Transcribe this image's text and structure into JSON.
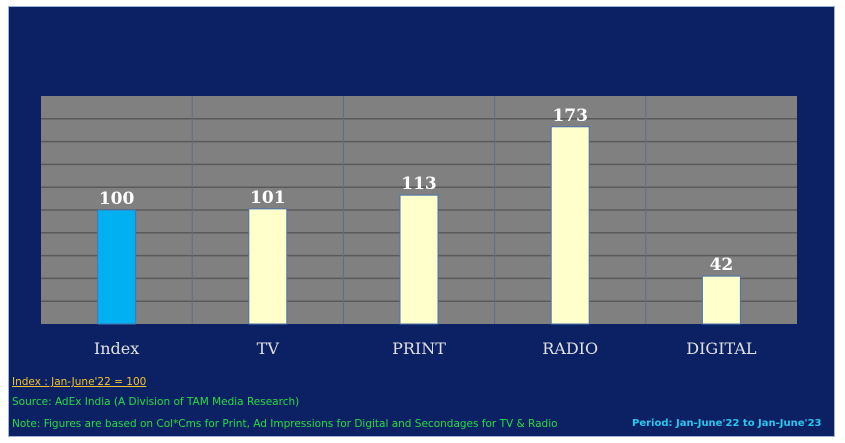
{
  "chart_data": {
    "type": "bar",
    "categories": [
      "Index",
      "TV",
      "PRINT",
      "RADIO",
      "DIGITAL"
    ],
    "values": [
      100,
      101,
      113,
      173,
      42
    ],
    "ylim": [
      0,
      200
    ],
    "grid": true,
    "bar_colors": [
      "#00b0f0",
      "#ffffcc",
      "#ffffcc",
      "#ffffcc",
      "#ffffcc"
    ],
    "plot_background": "#808080",
    "background": "#0b2163"
  },
  "notes": {
    "index": "Index : Jan-June'22 = 100",
    "source": "Source: AdEx India (A Division of TAM Media Research)",
    "note": "Note: Figures are based on Col*Cms for Print, Ad Impressions for Digital and Secondages for TV & Radio",
    "period": "Period: Jan-June'22 to Jan-June'23"
  }
}
